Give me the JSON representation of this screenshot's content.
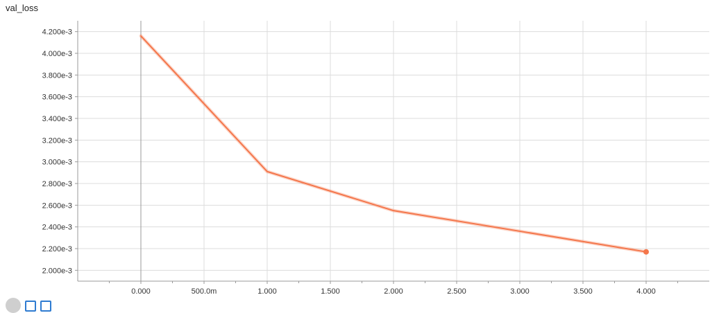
{
  "chart_data": {
    "type": "line",
    "title": "val_loss",
    "color": "#f4764b",
    "x": [
      0,
      1,
      2,
      3,
      4
    ],
    "series": [
      {
        "values": [
          0.00416,
          0.00291,
          0.00255,
          0.00236,
          0.00217
        ]
      }
    ],
    "xlim": [
      -0.5,
      4.5
    ],
    "ylim": [
      0.0019,
      0.0043
    ],
    "x_ticks": [
      0,
      0.5,
      1,
      1.5,
      2,
      2.5,
      3,
      3.5,
      4
    ],
    "x_tick_labels": [
      "0.000",
      "500.0m",
      "1.000",
      "1.500",
      "2.000",
      "2.500",
      "3.000",
      "3.500",
      "4.000"
    ],
    "y_ticks": [
      0.002,
      0.0022,
      0.0024,
      0.0026,
      0.0028,
      0.003,
      0.0032,
      0.0034,
      0.0036,
      0.0038,
      0.004,
      0.0042
    ],
    "y_tick_labels": [
      "2.000e-3",
      "2.200e-3",
      "2.400e-3",
      "2.600e-3",
      "2.800e-3",
      "3.000e-3",
      "3.200e-3",
      "3.400e-3",
      "3.600e-3",
      "3.800e-3",
      "4.000e-3",
      "4.200e-3"
    ],
    "grid": true,
    "marker_on_last_point": true
  },
  "toolbar": {
    "expand_icon": "expand-icon",
    "data_icon": "data-icon",
    "fit_icon": "fit-domain-icon"
  }
}
